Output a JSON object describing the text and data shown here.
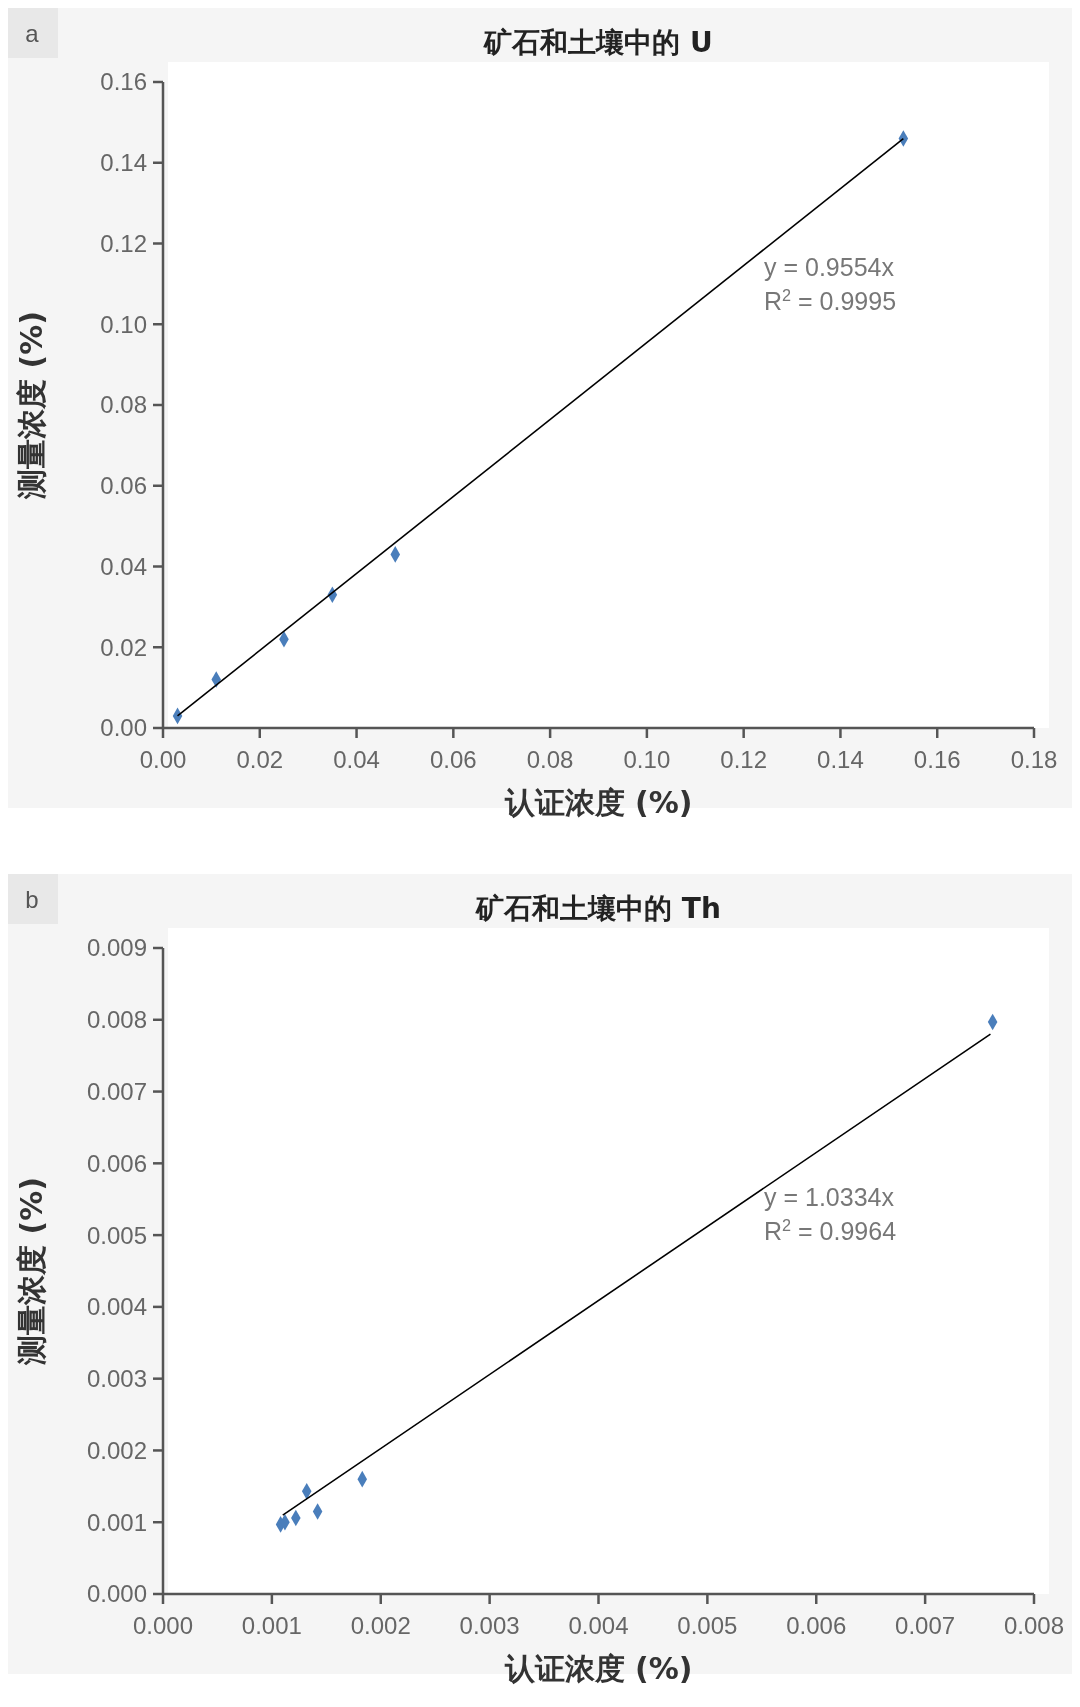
{
  "chart_data": [
    {
      "type": "scatter",
      "title": "矿石和土壤中的 U",
      "xlabel": "认证浓度 (%)",
      "ylabel": "测量浓度 (%)",
      "xlim": [
        0,
        0.18
      ],
      "ylim": [
        0,
        0.16
      ],
      "xticks": [
        {
          "value": 0,
          "label": "0.00"
        },
        {
          "value": 0.02,
          "label": "0.02"
        },
        {
          "value": 0.04,
          "label": "0.04"
        },
        {
          "value": 0.06,
          "label": "0.06"
        },
        {
          "value": 0.08,
          "label": "0.08"
        },
        {
          "value": 0.1,
          "label": "0.10"
        },
        {
          "value": 0.12,
          "label": "0.12"
        },
        {
          "value": 0.14,
          "label": "0.14"
        },
        {
          "value": 0.16,
          "label": "0.16"
        },
        {
          "value": 0.18,
          "label": "0.18"
        }
      ],
      "yticks": [
        {
          "value": 0,
          "label": "0.00"
        },
        {
          "value": 0.02,
          "label": "0.02"
        },
        {
          "value": 0.04,
          "label": "0.04"
        },
        {
          "value": 0.06,
          "label": "0.06"
        },
        {
          "value": 0.08,
          "label": "0.08"
        },
        {
          "value": 0.1,
          "label": "0.10"
        },
        {
          "value": 0.12,
          "label": "0.12"
        },
        {
          "value": 0.14,
          "label": "0.14"
        },
        {
          "value": 0.16,
          "label": "0.16"
        }
      ],
      "grid": false,
      "marker": "diamond",
      "series": [
        {
          "color": "#4a7ebb",
          "x": [
            0.003,
            0.011,
            0.025,
            0.035,
            0.048,
            0.153
          ],
          "values": [
            0.003,
            0.012,
            0.022,
            0.033,
            0.043,
            0.146
          ]
        },
        {
          "type": "line",
          "color": "#000000",
          "marker": "none",
          "x": [
            0.003,
            0.153
          ],
          "values": [
            0.003,
            0.146
          ]
        }
      ],
      "annotations": [
        "a",
        "y = 0.9554x",
        "R$^{2}$ = 0.9995"
      ]
    },
    {
      "type": "scatter",
      "title": "矿石和土壤中的 Th",
      "xlabel": "认证浓度 (%)",
      "ylabel": "测量浓度 (%)",
      "xlim": [
        0,
        0.008
      ],
      "ylim": [
        0,
        0.009
      ],
      "xticks": [
        {
          "value": 0,
          "label": "0.000"
        },
        {
          "value": 0.001,
          "label": "0.001"
        },
        {
          "value": 0.002,
          "label": "0.002"
        },
        {
          "value": 0.003,
          "label": "0.003"
        },
        {
          "value": 0.004,
          "label": "0.004"
        },
        {
          "value": 0.005,
          "label": "0.005"
        },
        {
          "value": 0.006,
          "label": "0.006"
        },
        {
          "value": 0.007,
          "label": "0.007"
        },
        {
          "value": 0.008,
          "label": "0.008"
        }
      ],
      "yticks": [
        {
          "value": 0,
          "label": "0.000"
        },
        {
          "value": 0.001,
          "label": "0.001"
        },
        {
          "value": 0.002,
          "label": "0.002"
        },
        {
          "value": 0.003,
          "label": "0.003"
        },
        {
          "value": 0.004,
          "label": "0.004"
        },
        {
          "value": 0.005,
          "label": "0.005"
        },
        {
          "value": 0.006,
          "label": "0.006"
        },
        {
          "value": 0.007,
          "label": "0.007"
        },
        {
          "value": 0.008,
          "label": "0.008"
        },
        {
          "value": 0.009,
          "label": "0.009"
        }
      ],
      "grid": false,
      "marker": "diamond",
      "series": [
        {
          "color": "#4a7ebb",
          "x": [
            0.00108,
            0.00112,
            0.00122,
            0.00132,
            0.00142,
            0.00183,
            0.00762
          ],
          "values": [
            0.00097,
            0.001,
            0.00106,
            0.00143,
            0.00115,
            0.0016,
            0.00797
          ]
        },
        {
          "type": "line",
          "color": "#000000",
          "marker": "none",
          "x": [
            0.0011,
            0.0076
          ],
          "values": [
            0.0011,
            0.0078
          ]
        }
      ],
      "annotations": [
        "b",
        "y = 1.0334x",
        "R$^{2}$ = 0.9964"
      ]
    }
  ]
}
